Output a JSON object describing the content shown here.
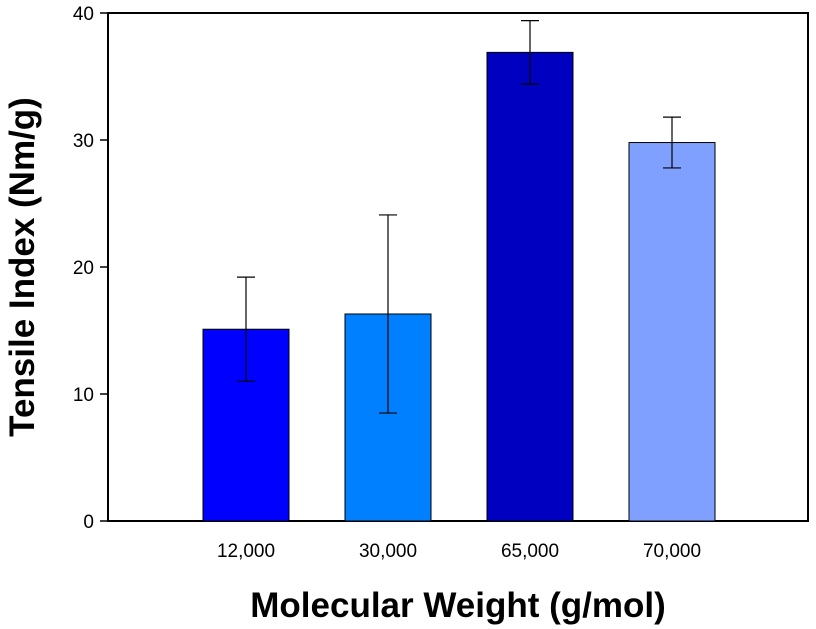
{
  "chart_data": {
    "type": "bar",
    "title": "",
    "xlabel": "Molecular Weight (g/mol)",
    "ylabel": "Tensile Index (Nm/g)",
    "categories": [
      "12,000",
      "30,000",
      "65,000",
      "70,000"
    ],
    "values": [
      15.1,
      16.3,
      36.9,
      29.8
    ],
    "error_low": [
      11.0,
      8.5,
      34.4,
      27.8
    ],
    "error_high": [
      19.2,
      24.1,
      39.4,
      31.8
    ],
    "colors": [
      "#0000ff",
      "#0080ff",
      "#0000c0",
      "#80a0ff"
    ],
    "ylim": [
      0,
      40
    ],
    "yticks": [
      0,
      10,
      20,
      30,
      40
    ],
    "grid": false,
    "legend": "none"
  }
}
